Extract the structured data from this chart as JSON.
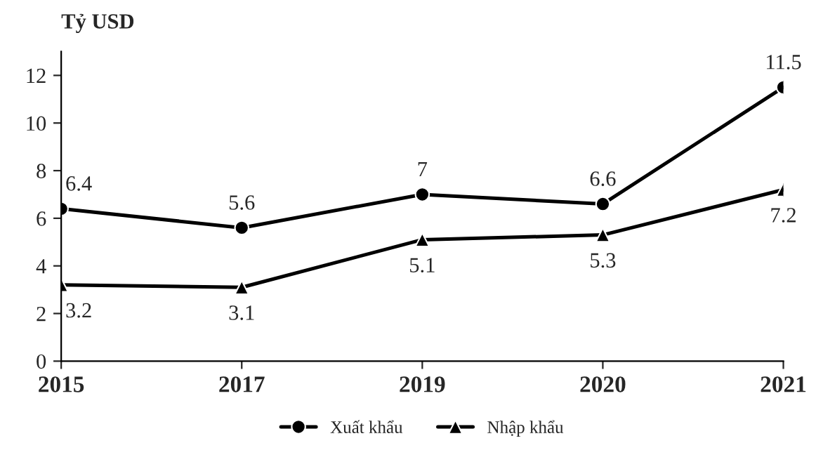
{
  "chart_data": {
    "type": "line",
    "ylabel": "Tỷ USD",
    "categories": [
      "2015",
      "2017",
      "2019",
      "2020",
      "2021"
    ],
    "series": [
      {
        "name": "Xuất khẩu",
        "color": "#000000",
        "values": [
          6.4,
          5.6,
          7,
          6.6,
          11.5
        ],
        "marker": "circle"
      },
      {
        "name": "Nhập khẩu",
        "color": "#000000",
        "values": [
          3.2,
          3.1,
          5.1,
          5.3,
          7.2
        ],
        "marker": "triangle"
      }
    ],
    "ylim": [
      0,
      13
    ],
    "yticks": [
      0,
      2,
      4,
      6,
      8,
      10,
      12
    ],
    "grid": false,
    "legend": "bottom",
    "data_labels": true,
    "line_style": "solid"
  }
}
